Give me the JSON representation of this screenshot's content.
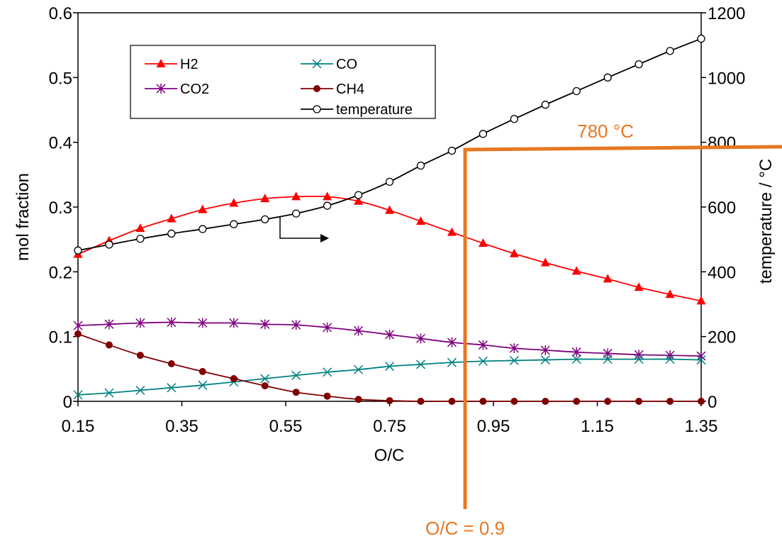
{
  "chart_data": {
    "type": "line",
    "xlabel": "O/C",
    "ylabel": "mol fraction",
    "y2label": "temperature / °C",
    "xlim": [
      0.15,
      1.35
    ],
    "ylim": [
      0,
      0.6
    ],
    "y2lim": [
      0,
      1200
    ],
    "x_ticks": [
      "0.15",
      "0.35",
      "0.55",
      "0.75",
      "0.95",
      "1.15",
      "1.35"
    ],
    "y_ticks": [
      "0",
      "0.1",
      "0.2",
      "0.3",
      "0.4",
      "0.5",
      "0.6"
    ],
    "y2_ticks": [
      "0",
      "200",
      "400",
      "600",
      "800",
      "1000",
      "1200"
    ],
    "x": [
      0.15,
      0.21,
      0.27,
      0.33,
      0.39,
      0.45,
      0.51,
      0.57,
      0.63,
      0.69,
      0.75,
      0.81,
      0.87,
      0.93,
      0.99,
      1.05,
      1.11,
      1.17,
      1.23,
      1.29,
      1.35
    ],
    "series": [
      {
        "name": "H2",
        "axis": "left",
        "color": "#ff0000",
        "marker": "triangle",
        "values": [
          0.227,
          0.248,
          0.267,
          0.282,
          0.296,
          0.306,
          0.313,
          0.316,
          0.316,
          0.309,
          0.295,
          0.278,
          0.261,
          0.244,
          0.228,
          0.214,
          0.201,
          0.189,
          0.176,
          0.165,
          0.155
        ]
      },
      {
        "name": "CO2",
        "axis": "left",
        "color": "#800080",
        "marker": "asterisk",
        "values": [
          0.117,
          0.119,
          0.121,
          0.122,
          0.121,
          0.121,
          0.119,
          0.118,
          0.114,
          0.109,
          0.103,
          0.097,
          0.091,
          0.087,
          0.082,
          0.079,
          0.076,
          0.074,
          0.072,
          0.071,
          0.07
        ]
      },
      {
        "name": "CO",
        "axis": "left",
        "color": "#008080",
        "marker": "x",
        "values": [
          0.01,
          0.013,
          0.017,
          0.021,
          0.025,
          0.03,
          0.035,
          0.04,
          0.045,
          0.049,
          0.054,
          0.057,
          0.06,
          0.062,
          0.063,
          0.064,
          0.065,
          0.065,
          0.065,
          0.065,
          0.064
        ]
      },
      {
        "name": "CH4",
        "axis": "left",
        "color": "#800000",
        "marker": "dot",
        "values": [
          0.104,
          0.087,
          0.071,
          0.058,
          0.046,
          0.035,
          0.024,
          0.014,
          0.008,
          0.003,
          0.001,
          0.0,
          0.0,
          0.0,
          0.0,
          0.0,
          0.0,
          0.0,
          0.0,
          0.0,
          0.0
        ]
      },
      {
        "name": "temperature",
        "axis": "right",
        "color": "#000000",
        "marker": "circle",
        "values": [
          466,
          484,
          502,
          518,
          532,
          547,
          562,
          580,
          604,
          637,
          678,
          728,
          774,
          826,
          872,
          916,
          958,
          1000,
          1041,
          1082,
          1120
        ]
      }
    ],
    "annotations": {
      "temp_label": "780 °C",
      "oc_label": "O/C = 0.9",
      "marker_temperature": 780,
      "marker_oc": 0.9,
      "color": "#e87722"
    },
    "legend_position": "top-left inside plot"
  }
}
